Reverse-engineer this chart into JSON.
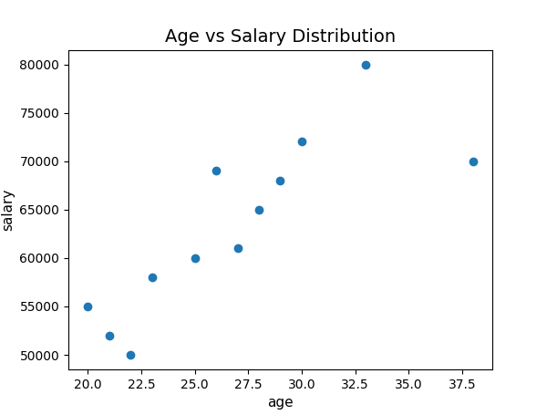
{
  "title": "Age vs Salary Distribution",
  "xlabel": "age",
  "ylabel": "salary",
  "ages": [
    20,
    21,
    22,
    23,
    25,
    26,
    27,
    28,
    29,
    30,
    33,
    38
  ],
  "salaries": [
    55000,
    52000,
    50000,
    58000,
    60000,
    69000,
    61000,
    65000,
    68000,
    72000,
    80000,
    70000
  ],
  "dot_color": "#1f77b4",
  "dot_size": 36,
  "figsize": [
    6.0,
    4.55
  ],
  "dpi": 100
}
